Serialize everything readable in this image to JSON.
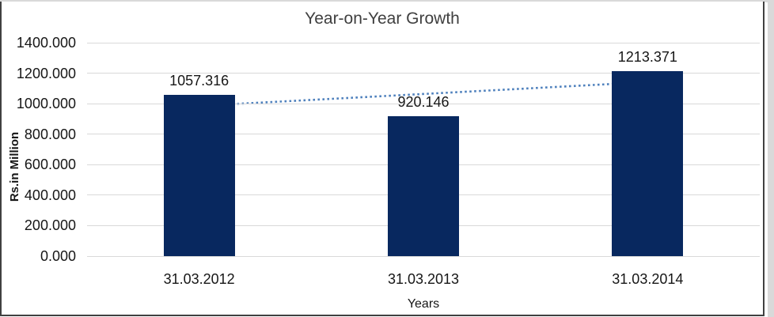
{
  "frame": {
    "outer_margin_color": "#d9d9d9",
    "border_color": "#404040",
    "background_color": "#ffffff"
  },
  "chart_data": {
    "type": "bar",
    "title": "Year-on-Year Growth",
    "xlabel": "Years",
    "ylabel": "Rs.in Million",
    "categories": [
      "31.03.2012",
      "31.03.2013",
      "31.03.2014"
    ],
    "series": [
      {
        "name": "Year-on-Year Growth",
        "values": [
          1057.316,
          920.146,
          1213.371
        ]
      }
    ],
    "data_labels": [
      "1057.316",
      "920.146",
      "1213.371"
    ],
    "ylim": [
      0,
      1400
    ],
    "ytick_step": 200,
    "ytick_labels": [
      "0.000",
      "200.000",
      "400.000",
      "600.000",
      "800.000",
      "1000.000",
      "1200.000",
      "1400.000"
    ],
    "value_format_decimals": 3,
    "grid": true,
    "legend": "none",
    "bar_color": "#08285f",
    "gridline_color": "#d9d9d9",
    "title_color": "#3f3f3f",
    "text_color": "#161616",
    "trendline": {
      "type": "linear",
      "style": "dotted",
      "color": "#4f81bd"
    }
  }
}
